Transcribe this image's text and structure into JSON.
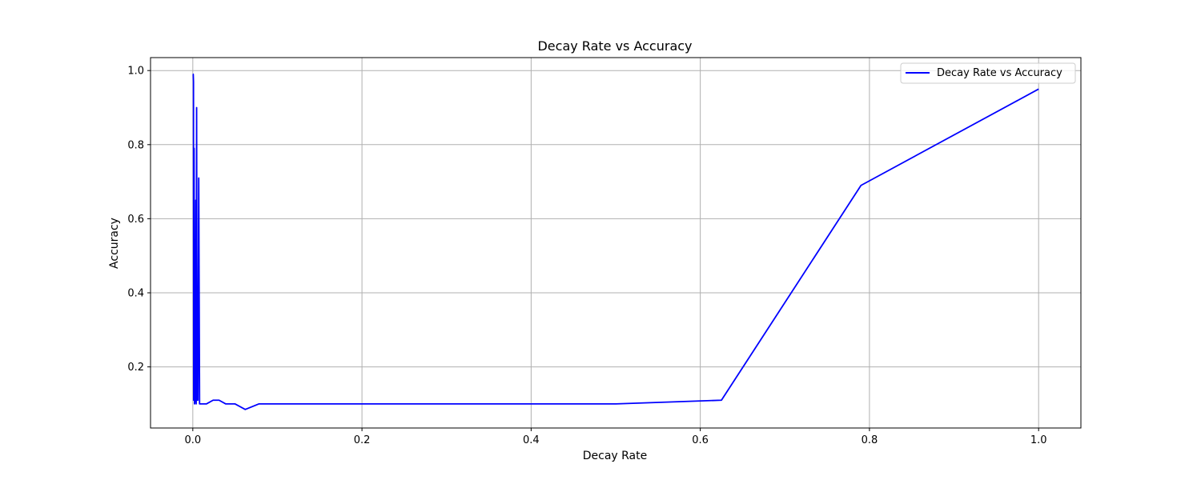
{
  "chart_data": {
    "type": "line",
    "title": "Decay Rate vs Accuracy",
    "xlabel": "Decay Rate",
    "ylabel": "Accuracy",
    "xlim": [
      -0.05,
      1.05
    ],
    "ylim": [
      0.035,
      1.035
    ],
    "x_ticks": [
      0.0,
      0.2,
      0.4,
      0.6,
      0.8,
      1.0
    ],
    "x_tick_labels": [
      "0.0",
      "0.2",
      "0.4",
      "0.6",
      "0.8",
      "1.0"
    ],
    "y_ticks": [
      0.2,
      0.4,
      0.6,
      0.8,
      1.0
    ],
    "y_tick_labels": [
      "0.2",
      "0.4",
      "0.6",
      "0.8",
      "1.0"
    ],
    "grid": true,
    "legend_position": "top-right",
    "series": [
      {
        "name": "Decay Rate vs Accuracy",
        "color": "#0000ff",
        "x": [
          0.0,
          0.0005,
          0.0008,
          0.001,
          0.0015,
          0.002,
          0.0025,
          0.003,
          0.0035,
          0.004,
          0.0045,
          0.005,
          0.006,
          0.007,
          0.008,
          0.009,
          0.01,
          0.016,
          0.024,
          0.031,
          0.039,
          0.05,
          0.062,
          0.078,
          0.5,
          0.625,
          0.79,
          1.0
        ],
        "y": [
          0.99,
          0.99,
          0.97,
          0.11,
          0.79,
          0.1,
          0.11,
          0.11,
          0.65,
          0.1,
          0.9,
          0.11,
          0.11,
          0.71,
          0.1,
          0.1,
          0.1,
          0.1,
          0.11,
          0.11,
          0.1,
          0.1,
          0.085,
          0.1,
          0.1,
          0.11,
          0.69,
          0.95
        ]
      }
    ]
  }
}
